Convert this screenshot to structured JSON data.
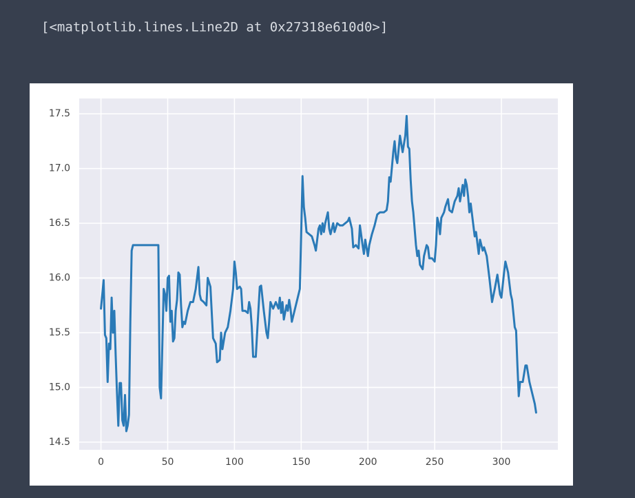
{
  "output_text": "[<matplotlib.lines.Line2D at 0x27318e610d0>]",
  "chart_data": {
    "type": "line",
    "color": "#2a7ab7",
    "grid": true,
    "xlim": [
      -16.3,
      342.3
    ],
    "ylim": [
      14.43,
      17.64
    ],
    "xticks": [
      0,
      50,
      100,
      150,
      200,
      250,
      300
    ],
    "yticks": [
      14.5,
      {
        "value": 15,
        "label": "15.0"
      },
      15.5,
      {
        "value": 16,
        "label": "16.0"
      },
      16.5,
      {
        "value": 17,
        "label": "17.0"
      },
      17.5
    ],
    "x": [
      0,
      1,
      2,
      3,
      4,
      5,
      6,
      7,
      8,
      9,
      10,
      11,
      12,
      13,
      14,
      15,
      16,
      17,
      18,
      19,
      20,
      21,
      22,
      23,
      24,
      43,
      44,
      45,
      46,
      47,
      48,
      49,
      50,
      51,
      52,
      53,
      54,
      55,
      56,
      57,
      58,
      59,
      60,
      61,
      62,
      63,
      65,
      67,
      69,
      71,
      73,
      74,
      75,
      77,
      79,
      80,
      82,
      84,
      86,
      87,
      89,
      90,
      91,
      93,
      95,
      97,
      99,
      100,
      101,
      102,
      104,
      105,
      106,
      108,
      110,
      111,
      112,
      113,
      114,
      116,
      117,
      119,
      120,
      122,
      124,
      125,
      126,
      127,
      129,
      131,
      133,
      134,
      135,
      136,
      137,
      139,
      140,
      141,
      142,
      143,
      145,
      147,
      149,
      150,
      151,
      152,
      153,
      154,
      156,
      158,
      160,
      161,
      163,
      164,
      165,
      166,
      167,
      168,
      170,
      171,
      172,
      174,
      175,
      177,
      179,
      181,
      183,
      185,
      186,
      188,
      189,
      191,
      193,
      194,
      196,
      197,
      198,
      200,
      201,
      203,
      205,
      207,
      209,
      212,
      214,
      215,
      216,
      217,
      219,
      220,
      221,
      222,
      224,
      226,
      228,
      229,
      230,
      231,
      232,
      233,
      234,
      236,
      237,
      238,
      239,
      241,
      242,
      244,
      245,
      246,
      248,
      250,
      251,
      252,
      253,
      254,
      255,
      257,
      258,
      260,
      261,
      263,
      265,
      267,
      268,
      269,
      271,
      272,
      273,
      274,
      275,
      276,
      277,
      279,
      280,
      281,
      282,
      283,
      284,
      286,
      287,
      289,
      291,
      293,
      295,
      297,
      299,
      300,
      302,
      303,
      305,
      307,
      308,
      310,
      311,
      312,
      313,
      314,
      316,
      318,
      319,
      321,
      323,
      325,
      326
    ],
    "values": [
      15.72,
      15.85,
      15.98,
      15.48,
      15.45,
      15.05,
      15.4,
      15.35,
      15.82,
      15.5,
      15.7,
      15.3,
      14.95,
      14.65,
      15.04,
      15.04,
      14.7,
      14.65,
      14.93,
      14.6,
      14.65,
      14.75,
      15.6,
      16.25,
      16.3,
      16.3,
      15.0,
      14.9,
      15.4,
      15.9,
      15.85,
      15.7,
      16.0,
      16.02,
      15.6,
      15.7,
      15.42,
      15.45,
      15.7,
      15.8,
      16.05,
      16.03,
      15.75,
      15.55,
      15.6,
      15.58,
      15.7,
      15.78,
      15.78,
      15.9,
      16.1,
      15.85,
      15.8,
      15.78,
      15.75,
      16.0,
      15.92,
      15.45,
      15.4,
      15.23,
      15.25,
      15.5,
      15.35,
      15.5,
      15.55,
      15.7,
      15.9,
      16.15,
      16.05,
      15.9,
      15.92,
      15.9,
      15.7,
      15.7,
      15.68,
      15.78,
      15.72,
      15.55,
      15.28,
      15.28,
      15.5,
      15.92,
      15.93,
      15.7,
      15.5,
      15.45,
      15.6,
      15.78,
      15.72,
      15.78,
      15.72,
      15.82,
      15.68,
      15.78,
      15.62,
      15.75,
      15.7,
      15.8,
      15.72,
      15.6,
      15.7,
      15.8,
      15.9,
      16.4,
      16.93,
      16.65,
      16.55,
      16.42,
      16.4,
      16.38,
      16.3,
      16.25,
      16.45,
      16.48,
      16.4,
      16.5,
      16.42,
      16.5,
      16.6,
      16.45,
      16.4,
      16.5,
      16.42,
      16.5,
      16.48,
      16.48,
      16.5,
      16.52,
      16.55,
      16.45,
      16.28,
      16.3,
      16.27,
      16.48,
      16.3,
      16.22,
      16.35,
      16.2,
      16.3,
      16.4,
      16.48,
      16.58,
      16.6,
      16.6,
      16.62,
      16.7,
      16.92,
      16.88,
      17.15,
      17.25,
      17.1,
      17.05,
      17.3,
      17.15,
      17.3,
      17.48,
      17.2,
      17.18,
      16.9,
      16.7,
      16.6,
      16.3,
      16.2,
      16.25,
      16.12,
      16.08,
      16.2,
      16.3,
      16.28,
      16.18,
      16.18,
      16.15,
      16.3,
      16.55,
      16.5,
      16.4,
      16.55,
      16.6,
      16.65,
      16.72,
      16.62,
      16.6,
      16.7,
      16.75,
      16.82,
      16.7,
      16.85,
      16.75,
      16.9,
      16.85,
      16.75,
      16.6,
      16.68,
      16.48,
      16.38,
      16.42,
      16.32,
      16.22,
      16.35,
      16.25,
      16.28,
      16.2,
      16.0,
      15.78,
      15.9,
      16.03,
      15.85,
      15.82,
      16.05,
      16.15,
      16.05,
      15.85,
      15.8,
      15.55,
      15.52,
      15.2,
      14.92,
      15.05,
      15.05,
      15.2,
      15.2,
      15.05,
      14.95,
      14.85,
      14.77
    ]
  }
}
